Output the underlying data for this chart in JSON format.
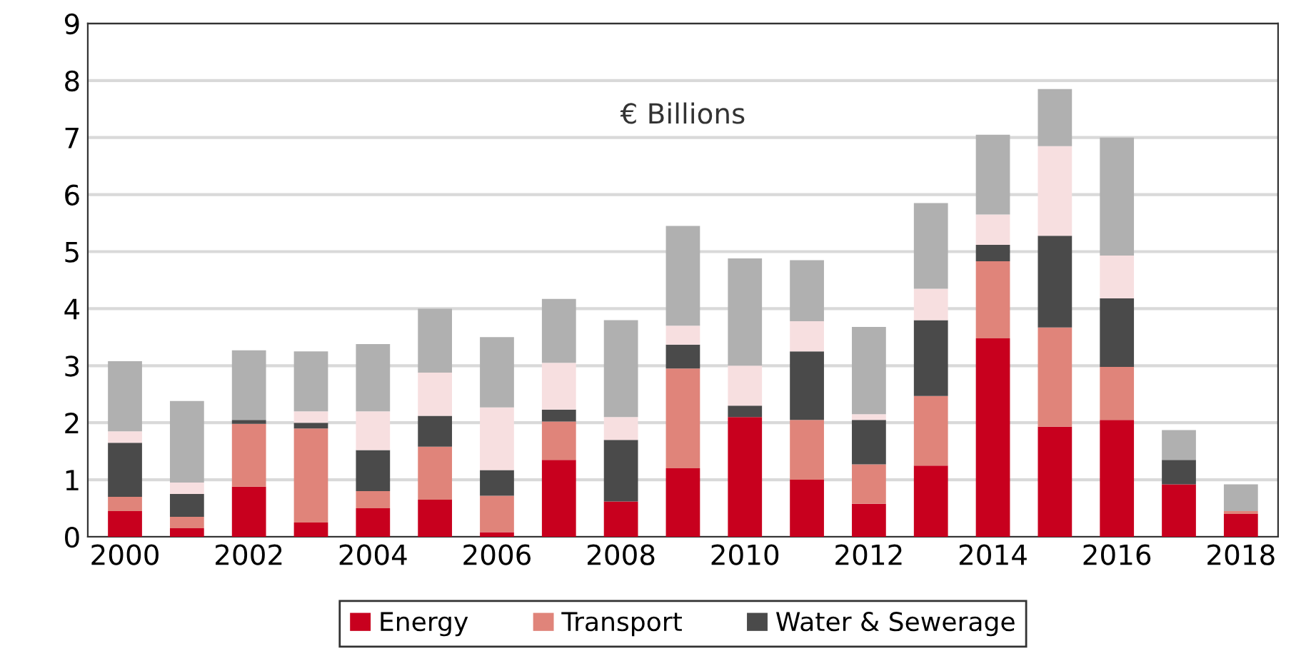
{
  "chart_data": {
    "type": "bar",
    "stacked": true,
    "categories": [
      "2000",
      null,
      "2002",
      null,
      "2004",
      null,
      "2006",
      null,
      "2008",
      null,
      "2010",
      null,
      "2012",
      null,
      "2014",
      null,
      "2016",
      null,
      "2018"
    ],
    "series": [
      {
        "name": "Energy",
        "color": "#c8001e",
        "values": [
          0.45,
          0.15,
          0.88,
          0.25,
          0.5,
          0.65,
          0.08,
          1.35,
          0.62,
          1.2,
          2.1,
          1.0,
          0.58,
          1.25,
          3.48,
          1.93,
          2.05,
          0.92,
          0.4
        ]
      },
      {
        "name": "Transport",
        "color": "#e0847a",
        "values": [
          0.25,
          0.2,
          1.1,
          1.65,
          0.3,
          0.93,
          0.64,
          0.67,
          0,
          1.75,
          0,
          1.05,
          0.69,
          1.22,
          1.35,
          1.74,
          0.93,
          0,
          0.05
        ]
      },
      {
        "name": "Water & Sewerage",
        "color": "#4a4a4a",
        "values": [
          0.95,
          0.4,
          0.07,
          0.1,
          0.72,
          0.54,
          0.45,
          0.21,
          1.08,
          0.42,
          0.2,
          1.2,
          0.78,
          1.33,
          0.29,
          1.61,
          1.2,
          0.43,
          0
        ]
      },
      {
        "color": "#f7dfe0",
        "values": [
          0.2,
          0.2,
          0,
          0.2,
          0.68,
          0.76,
          1.1,
          0.82,
          0.4,
          0.33,
          0.7,
          0.53,
          0.1,
          0.55,
          0.53,
          1.57,
          0.75,
          0,
          0
        ]
      },
      {
        "color": "#b0b0b0",
        "values": [
          1.23,
          1.43,
          1.22,
          1.05,
          1.18,
          1.12,
          1.23,
          1.12,
          1.7,
          1.75,
          1.88,
          1.07,
          1.53,
          1.5,
          1.4,
          1.0,
          2.07,
          0.52,
          0.47
        ]
      }
    ],
    "ylim": [
      0,
      9
    ],
    "yticks": [
      0,
      1,
      2,
      3,
      4,
      5,
      6,
      7,
      8,
      9
    ],
    "grid": "y",
    "legend": "bottom",
    "annotations": [
      "€ Billions"
    ]
  }
}
